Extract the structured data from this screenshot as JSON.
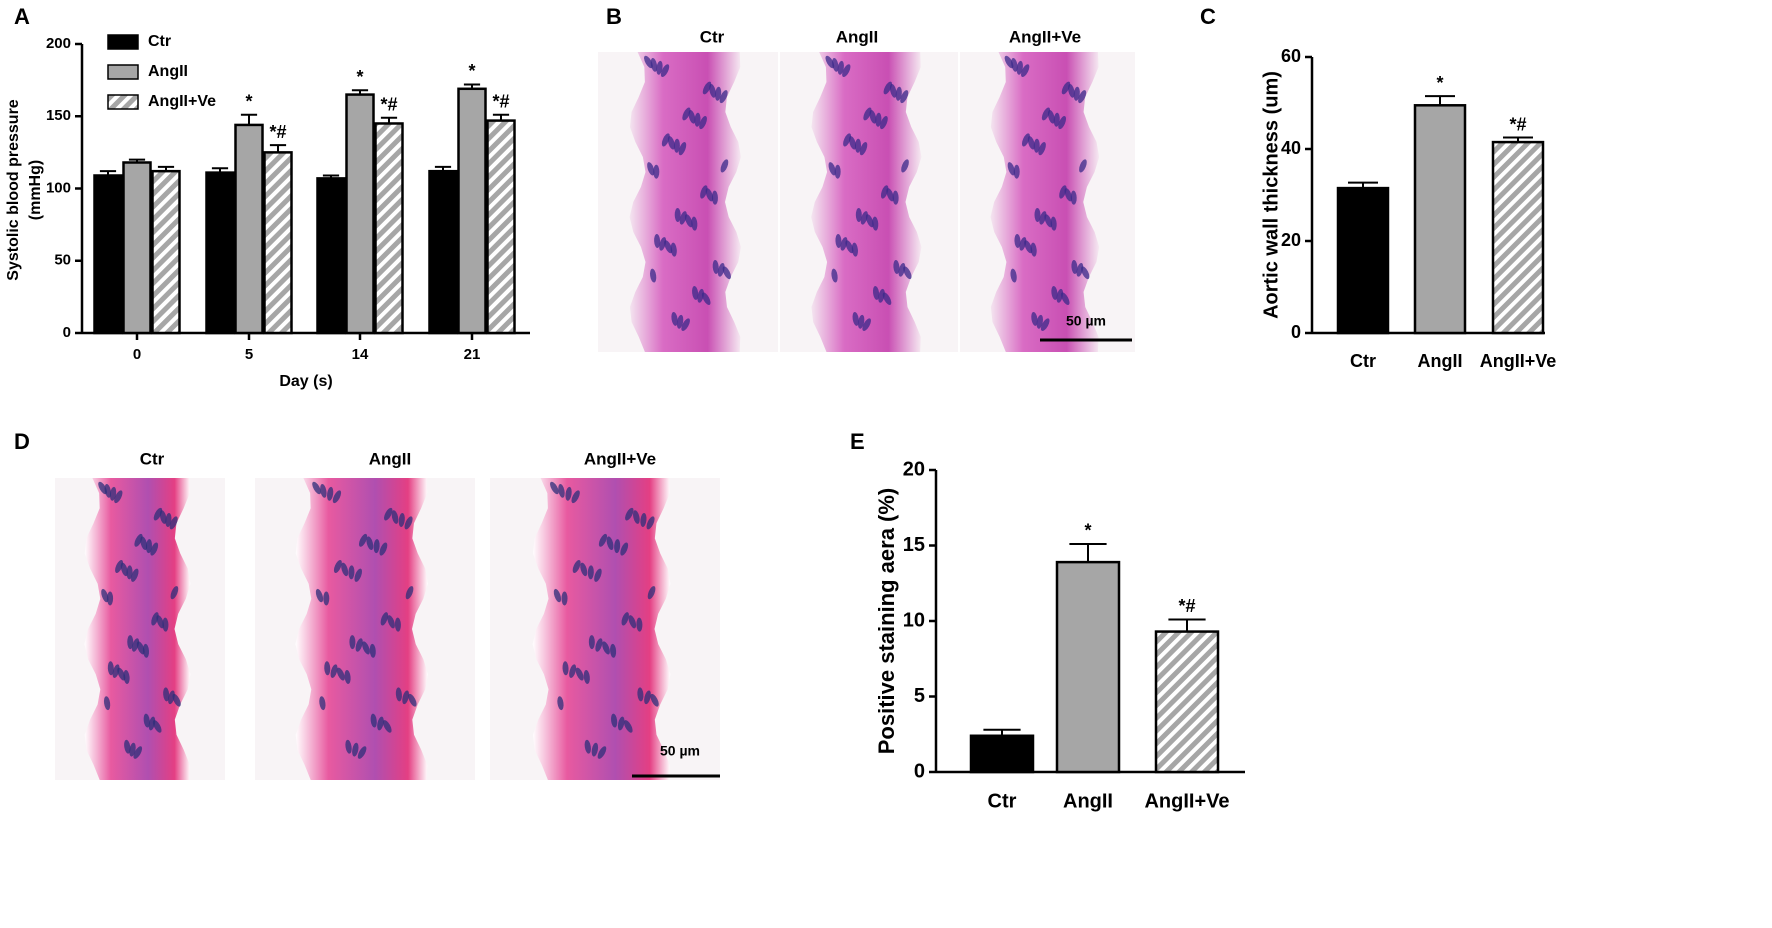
{
  "panel_labels": [
    "A",
    "B",
    "C",
    "D",
    "E"
  ],
  "images": [
    {
      "labels": [
        "Ctr",
        "AngII",
        "AngII+Ve"
      ],
      "scale_bar": "50 µm"
    },
    {
      "labels": [
        "Ctr",
        "AngII",
        "AngII+Ve"
      ],
      "scale_bar": "50 µm"
    }
  ],
  "chart_data": [
    {
      "type": "grouped_bar",
      "xlabel": "Day (s)",
      "ylabel_lines": [
        "Systolic blood pressure",
        "(mmHg)"
      ],
      "categories": [
        "0",
        "5",
        "14",
        "21"
      ],
      "ylim": [
        0,
        200
      ],
      "yticks": [
        0,
        50,
        100,
        150,
        200
      ],
      "series": [
        {
          "name": "Ctr",
          "color": "#000000",
          "hatched": false,
          "values": [
            109,
            111,
            107,
            112
          ],
          "errors": [
            3,
            3,
            2,
            3
          ],
          "annotations": [
            null,
            null,
            null,
            null
          ]
        },
        {
          "name": "AngII",
          "color": "#a6a6a6",
          "hatched": false,
          "values": [
            118,
            144,
            165,
            169
          ],
          "errors": [
            2,
            7,
            3,
            3
          ],
          "annotations": [
            null,
            "*",
            "*",
            "*"
          ]
        },
        {
          "name": "AngII+Ve",
          "color": "#a6a6a6",
          "hatched": true,
          "values": [
            112,
            125,
            145,
            147
          ],
          "errors": [
            3,
            5,
            4,
            4
          ],
          "annotations": [
            null,
            "*#",
            "*#",
            "*#"
          ]
        }
      ]
    },
    {
      "type": "bar",
      "ylabel": "Aortic wall thickness (um)",
      "categories": [
        "Ctr",
        "AngII",
        "AngII+Ve"
      ],
      "values": [
        31.5,
        49.5,
        41.5
      ],
      "errors": [
        1.2,
        2,
        1
      ],
      "colors": [
        "#000000",
        "#a6a6a6",
        "#a6a6a6"
      ],
      "hatched": [
        false,
        false,
        true
      ],
      "annotations": [
        null,
        "*",
        "*#"
      ],
      "ylim": [
        0,
        60
      ],
      "yticks": [
        0,
        20,
        40,
        60
      ]
    },
    {
      "type": "bar",
      "ylabel": "Positive staining aera (%)",
      "categories": [
        "Ctr",
        "AngII",
        "AngII+Ve"
      ],
      "values": [
        2.4,
        13.9,
        9.3
      ],
      "errors": [
        0.4,
        1.2,
        0.8
      ],
      "colors": [
        "#000000",
        "#a6a6a6",
        "#a6a6a6"
      ],
      "hatched": [
        false,
        false,
        true
      ],
      "annotations": [
        null,
        "*",
        "*#"
      ],
      "ylim": [
        0,
        20
      ],
      "yticks": [
        0,
        5,
        10,
        15,
        20
      ]
    }
  ]
}
